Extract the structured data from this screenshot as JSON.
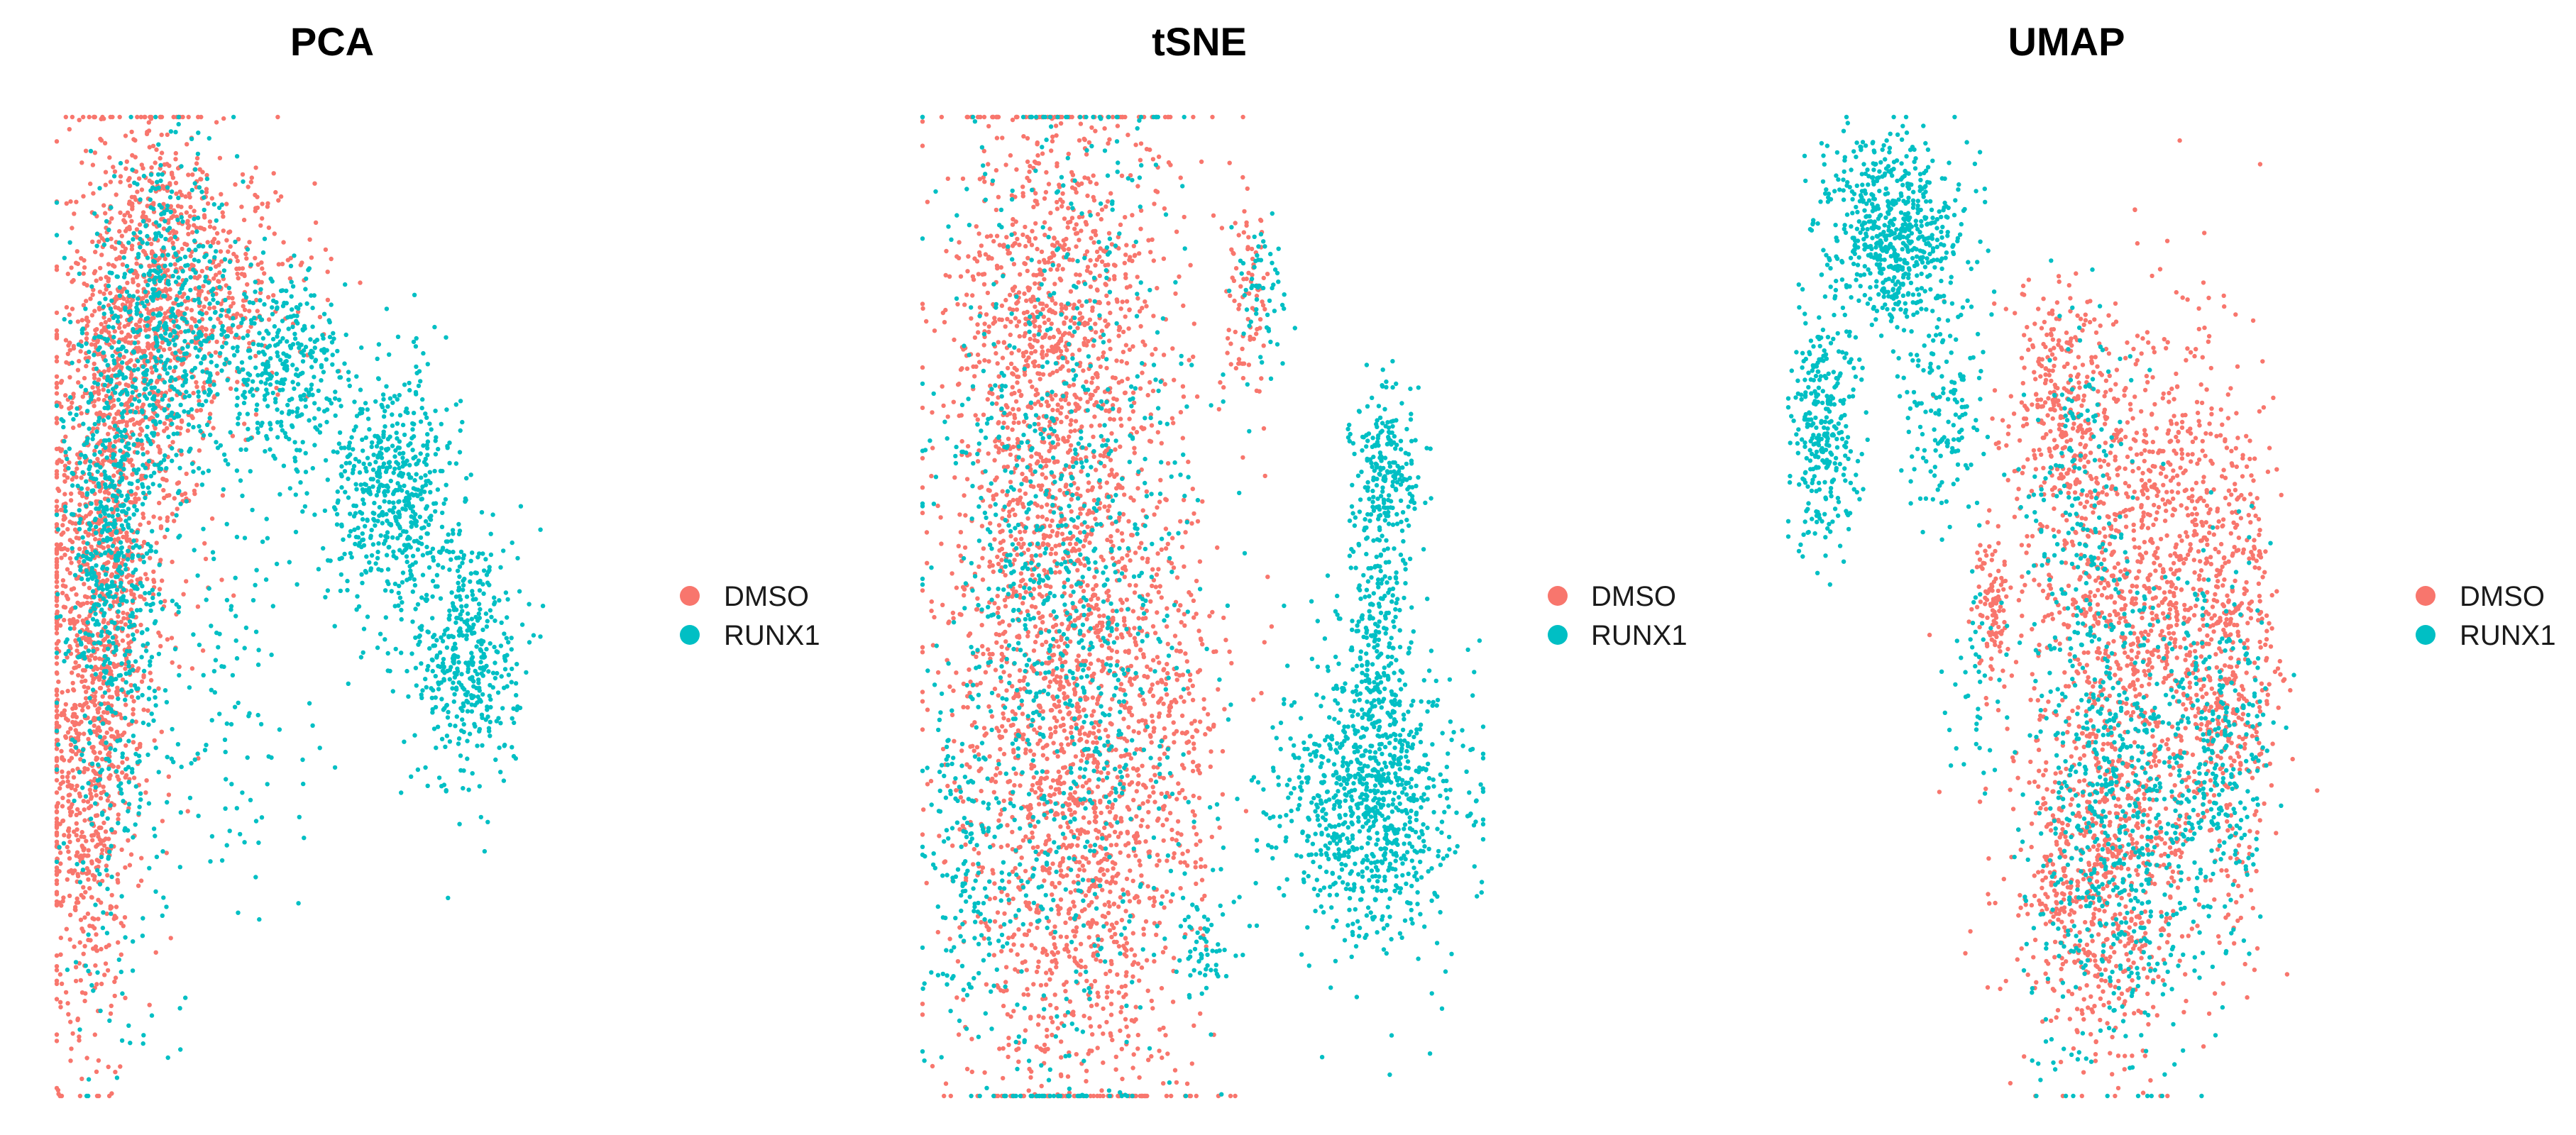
{
  "chart_data": [
    {
      "type": "scatter",
      "title": "PCA",
      "xlabel": "",
      "ylabel": "",
      "axes_visible": false,
      "grid": false,
      "legend_position": "right",
      "point_colors": {
        "DMSO": "#F8766D",
        "RUNX1": "#00BFC4"
      },
      "series": [
        {
          "name": "DMSO",
          "color": "#F8766D",
          "clusters": [
            {
              "cx": 0.18,
              "cy": 0.8,
              "sx": 0.06,
              "sy": 0.1,
              "n": 700
            },
            {
              "cx": 0.08,
              "cy": 0.55,
              "sx": 0.05,
              "sy": 0.14,
              "n": 800
            },
            {
              "cx": 0.05,
              "cy": 0.32,
              "sx": 0.04,
              "sy": 0.12,
              "n": 450
            },
            {
              "cx": 0.12,
              "cy": 0.68,
              "sx": 0.08,
              "sy": 0.2,
              "n": 400
            },
            {
              "cx": 0.32,
              "cy": 0.82,
              "sx": 0.08,
              "sy": 0.06,
              "n": 250
            },
            {
              "cx": 0.06,
              "cy": 0.15,
              "sx": 0.05,
              "sy": 0.1,
              "n": 60
            }
          ]
        },
        {
          "name": "RUNX1",
          "color": "#00BFC4",
          "clusters": [
            {
              "cx": 0.2,
              "cy": 0.78,
              "sx": 0.07,
              "sy": 0.08,
              "n": 600
            },
            {
              "cx": 0.1,
              "cy": 0.55,
              "sx": 0.04,
              "sy": 0.12,
              "n": 600
            },
            {
              "cx": 0.42,
              "cy": 0.74,
              "sx": 0.06,
              "sy": 0.05,
              "n": 350
            },
            {
              "cx": 0.62,
              "cy": 0.62,
              "sx": 0.06,
              "sy": 0.06,
              "n": 550
            },
            {
              "cx": 0.76,
              "cy": 0.45,
              "sx": 0.05,
              "sy": 0.07,
              "n": 450
            },
            {
              "cx": 0.3,
              "cy": 0.45,
              "sx": 0.1,
              "sy": 0.12,
              "n": 150
            },
            {
              "cx": 0.1,
              "cy": 0.25,
              "sx": 0.06,
              "sy": 0.12,
              "n": 100
            }
          ]
        }
      ]
    },
    {
      "type": "scatter",
      "title": "tSNE",
      "xlabel": "",
      "ylabel": "",
      "axes_visible": false,
      "grid": false,
      "legend_position": "right",
      "point_colors": {
        "DMSO": "#F8766D",
        "RUNX1": "#00BFC4"
      },
      "series": [
        {
          "name": "DMSO",
          "color": "#F8766D",
          "clusters": [
            {
              "cx": 0.26,
              "cy": 0.5,
              "sx": 0.11,
              "sy": 0.26,
              "n": 2200
            },
            {
              "cx": 0.22,
              "cy": 0.8,
              "sx": 0.08,
              "sy": 0.1,
              "n": 400
            },
            {
              "cx": 0.3,
              "cy": 0.2,
              "sx": 0.09,
              "sy": 0.12,
              "n": 400
            },
            {
              "cx": 0.58,
              "cy": 0.8,
              "sx": 0.02,
              "sy": 0.05,
              "n": 80
            },
            {
              "cx": 0.46,
              "cy": 0.4,
              "sx": 0.04,
              "sy": 0.1,
              "n": 150
            }
          ]
        },
        {
          "name": "RUNX1",
          "color": "#00BFC4",
          "clusters": [
            {
              "cx": 0.26,
              "cy": 0.5,
              "sx": 0.11,
              "sy": 0.26,
              "n": 1100
            },
            {
              "cx": 0.8,
              "cy": 0.3,
              "sx": 0.08,
              "sy": 0.07,
              "n": 900
            },
            {
              "cx": 0.81,
              "cy": 0.48,
              "sx": 0.03,
              "sy": 0.07,
              "n": 250
            },
            {
              "cx": 0.83,
              "cy": 0.64,
              "sx": 0.03,
              "sy": 0.04,
              "n": 200
            },
            {
              "cx": 0.6,
              "cy": 0.82,
              "sx": 0.025,
              "sy": 0.04,
              "n": 60
            },
            {
              "cx": 0.5,
              "cy": 0.15,
              "sx": 0.03,
              "sy": 0.03,
              "n": 60
            },
            {
              "cx": 0.08,
              "cy": 0.25,
              "sx": 0.04,
              "sy": 0.1,
              "n": 150
            }
          ]
        }
      ]
    },
    {
      "type": "scatter",
      "title": "UMAP",
      "xlabel": "",
      "ylabel": "",
      "axes_visible": false,
      "grid": false,
      "legend_position": "right",
      "point_colors": {
        "DMSO": "#F8766D",
        "RUNX1": "#00BFC4"
      },
      "series": [
        {
          "name": "DMSO",
          "color": "#F8766D",
          "clusters": [
            {
              "cx": 0.62,
              "cy": 0.52,
              "sx": 0.1,
              "sy": 0.14,
              "n": 1200
            },
            {
              "cx": 0.55,
              "cy": 0.22,
              "sx": 0.08,
              "sy": 0.09,
              "n": 700
            },
            {
              "cx": 0.48,
              "cy": 0.7,
              "sx": 0.04,
              "sy": 0.06,
              "n": 250
            },
            {
              "cx": 0.36,
              "cy": 0.5,
              "sx": 0.015,
              "sy": 0.04,
              "n": 100
            },
            {
              "cx": 0.78,
              "cy": 0.45,
              "sx": 0.04,
              "sy": 0.12,
              "n": 400
            }
          ]
        },
        {
          "name": "RUNX1",
          "color": "#00BFC4",
          "clusters": [
            {
              "cx": 0.18,
              "cy": 0.88,
              "sx": 0.06,
              "sy": 0.05,
              "n": 650
            },
            {
              "cx": 0.06,
              "cy": 0.68,
              "sx": 0.03,
              "sy": 0.06,
              "n": 300
            },
            {
              "cx": 0.28,
              "cy": 0.7,
              "sx": 0.04,
              "sy": 0.06,
              "n": 150
            },
            {
              "cx": 0.58,
              "cy": 0.28,
              "sx": 0.08,
              "sy": 0.12,
              "n": 650
            },
            {
              "cx": 0.75,
              "cy": 0.35,
              "sx": 0.05,
              "sy": 0.1,
              "n": 300
            },
            {
              "cx": 0.52,
              "cy": 0.6,
              "sx": 0.05,
              "sy": 0.1,
              "n": 200
            },
            {
              "cx": 0.32,
              "cy": 0.42,
              "sx": 0.02,
              "sy": 0.06,
              "n": 40
            }
          ]
        }
      ]
    }
  ]
}
